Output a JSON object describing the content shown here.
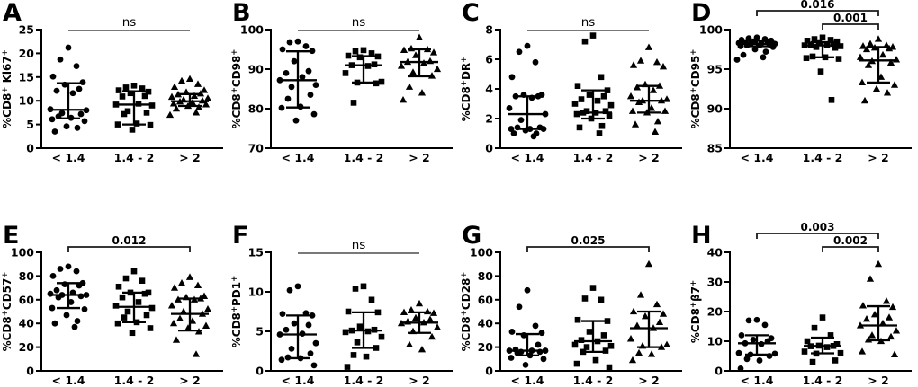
{
  "figure": {
    "background": "#ffffff",
    "x_categories": [
      "< 1.4",
      "1.4 - 2",
      "> 2"
    ],
    "marker_shapes": [
      "circle",
      "square",
      "triangle"
    ],
    "colors": {
      "points": "#000000",
      "axis": "#000000",
      "text": "#000000",
      "ns_line": "#666666",
      "bracket": "#1a1a1a"
    }
  },
  "chart_data": [
    {
      "type": "scatter",
      "letter": "A",
      "ylabel_plain": "%CD8+ Ki67+",
      "ylabel_rich": "%CD8^+ Ki67^+",
      "ylim": [
        0,
        25
      ],
      "yticks": [
        0,
        5,
        10,
        15,
        20,
        25
      ],
      "categories": [
        "< 1.4",
        "1.4 - 2",
        "> 2"
      ],
      "significance": [
        {
          "style": "line",
          "label": "ns",
          "from_group": 0,
          "to_group": 2
        }
      ],
      "series": [
        {
          "category": "< 1.4",
          "marker": "circle",
          "median": 8.1,
          "iqr_low": 6.3,
          "iqr_high": 13.7,
          "values": [
            21.2,
            18.7,
            17.3,
            15.1,
            13.9,
            13.4,
            12.5,
            12.1,
            11.6,
            8.2,
            8.0,
            7.4,
            7.2,
            6.7,
            6.4,
            6.1,
            5.7,
            4.6,
            4.3,
            3.5
          ]
        },
        {
          "category": "1.4 - 2",
          "marker": "square",
          "median": 9.2,
          "iqr_low": 5.0,
          "iqr_high": 12.0,
          "values": [
            13.2,
            12.8,
            12.6,
            12.2,
            11.9,
            11.6,
            11.0,
            10.9,
            9.4,
            9.2,
            9.0,
            7.8,
            7.5,
            7.2,
            5.2,
            5.0,
            4.9,
            3.9
          ]
        },
        {
          "category": "> 2",
          "marker": "triangle",
          "median": 9.9,
          "iqr_low": 8.9,
          "iqr_high": 11.4,
          "values": [
            14.6,
            14.2,
            13.5,
            12.9,
            12.2,
            11.8,
            11.5,
            11.3,
            11.0,
            10.8,
            10.5,
            10.2,
            10.0,
            9.8,
            9.6,
            9.4,
            9.2,
            8.9,
            8.6,
            8.3,
            7.5,
            7.0
          ]
        }
      ]
    },
    {
      "type": "scatter",
      "letter": "B",
      "ylabel_plain": "%CD8+CD98+",
      "ylabel_rich": "%CD8^+CD98^+",
      "ylim": [
        70,
        100
      ],
      "yticks": [
        70,
        80,
        90,
        100
      ],
      "categories": [
        "< 1.4",
        "1.4 - 2",
        "> 2"
      ],
      "significance": [
        {
          "style": "line",
          "label": "ns",
          "from_group": 0,
          "to_group": 2
        }
      ],
      "series": [
        {
          "category": "< 1.4",
          "marker": "circle",
          "median": 87.2,
          "iqr_low": 80.3,
          "iqr_high": 94.5,
          "values": [
            97.0,
            96.8,
            95.8,
            95.0,
            94.6,
            92.0,
            89.5,
            89.0,
            88.0,
            87.2,
            86.0,
            85.5,
            83.5,
            82.5,
            80.5,
            80.2,
            78.6,
            77.0
          ]
        },
        {
          "category": "1.4 - 2",
          "marker": "square",
          "median": 91.0,
          "iqr_low": 86.6,
          "iqr_high": 93.3,
          "values": [
            94.8,
            94.5,
            94.0,
            93.4,
            93.2,
            93.0,
            91.2,
            91.0,
            90.8,
            89.0,
            86.8,
            86.6,
            86.4,
            81.5
          ]
        },
        {
          "category": "> 2",
          "marker": "triangle",
          "median": 91.8,
          "iqr_low": 88.2,
          "iqr_high": 95.0,
          "values": [
            98.0,
            95.2,
            95.0,
            94.8,
            94.2,
            93.5,
            92.0,
            91.8,
            91.5,
            90.8,
            90.0,
            89.2,
            88.3,
            85.5,
            84.0,
            82.2
          ]
        }
      ]
    },
    {
      "type": "scatter",
      "letter": "C",
      "ylabel_plain": "%CD8+DR+",
      "ylabel_rich": "%CD8^+DR^+",
      "ylim": [
        0,
        8
      ],
      "yticks": [
        0,
        2,
        4,
        6,
        8
      ],
      "categories": [
        "< 1.4",
        "1.4 - 2",
        "> 2"
      ],
      "significance": [
        {
          "style": "line",
          "label": "ns",
          "from_group": 0,
          "to_group": 2
        }
      ],
      "series": [
        {
          "category": "< 1.4",
          "marker": "circle",
          "median": 2.3,
          "iqr_low": 1.3,
          "iqr_high": 3.5,
          "values": [
            6.9,
            6.5,
            5.8,
            4.8,
            3.6,
            3.6,
            3.5,
            3.5,
            3.4,
            2.7,
            2.3,
            1.9,
            1.4,
            1.4,
            1.3,
            1.3,
            1.3,
            1.2,
            1.0,
            1.0,
            0.8
          ]
        },
        {
          "category": "1.4 - 2",
          "marker": "square",
          "median": 2.4,
          "iqr_low": 2.0,
          "iqr_high": 3.9,
          "values": [
            7.6,
            7.2,
            4.8,
            4.2,
            3.9,
            3.6,
            3.5,
            3.3,
            3.2,
            3.0,
            2.9,
            2.5,
            2.5,
            2.4,
            2.4,
            2.3,
            2.2,
            2.0,
            1.5,
            1.4,
            1.0
          ]
        },
        {
          "category": "> 2",
          "marker": "triangle",
          "median": 3.2,
          "iqr_low": 2.4,
          "iqr_high": 4.2,
          "values": [
            6.8,
            5.9,
            5.8,
            5.6,
            5.5,
            4.3,
            4.2,
            4.1,
            3.9,
            3.5,
            3.3,
            3.2,
            3.2,
            3.1,
            2.7,
            2.5,
            2.5,
            2.4,
            1.8,
            1.6,
            1.1
          ]
        }
      ]
    },
    {
      "type": "scatter",
      "letter": "D",
      "ylabel_plain": "%CD8+CD95+",
      "ylabel_rich": "%CD8^+CD95^+",
      "ylim": [
        85,
        100
      ],
      "yticks": [
        85,
        90,
        95,
        100
      ],
      "categories": [
        "< 1.4",
        "1.4 - 2",
        "> 2"
      ],
      "significance": [
        {
          "style": "bracket",
          "label": "0.016",
          "from_group": 0,
          "to_group": 2,
          "level": 0
        },
        {
          "style": "bracket",
          "label": "0.001",
          "from_group": 1,
          "to_group": 2,
          "level": 1
        }
      ],
      "series": [
        {
          "category": "< 1.4",
          "marker": "circle",
          "median": 98.2,
          "iqr_low": 97.9,
          "iqr_high": 98.6,
          "values": [
            99.0,
            98.9,
            98.8,
            98.7,
            98.6,
            98.5,
            98.5,
            98.4,
            98.3,
            98.3,
            98.2,
            98.2,
            98.1,
            98.0,
            98.0,
            97.9,
            97.8,
            97.5,
            97.2,
            96.8,
            96.5,
            96.2
          ]
        },
        {
          "category": "1.4 - 2",
          "marker": "square",
          "median": 98.0,
          "iqr_low": 96.5,
          "iqr_high": 98.4,
          "values": [
            99.0,
            98.8,
            98.7,
            98.6,
            98.5,
            98.4,
            98.2,
            98.1,
            98.0,
            98.0,
            97.9,
            97.8,
            97.7,
            96.6,
            96.5,
            96.4,
            96.3,
            94.7,
            91.1
          ]
        },
        {
          "category": "> 2",
          "marker": "triangle",
          "median": 96.1,
          "iqr_low": 93.3,
          "iqr_high": 97.8,
          "values": [
            98.8,
            98.2,
            98.0,
            97.9,
            97.8,
            97.7,
            97.6,
            97.5,
            96.8,
            96.5,
            96.2,
            96.0,
            95.8,
            95.5,
            94.0,
            93.3,
            93.0,
            92.5,
            92.0,
            91.0
          ]
        }
      ]
    },
    {
      "type": "scatter",
      "letter": "E",
      "ylabel_plain": "%CD8+CD57+",
      "ylabel_rich": "%CD8^+CD57^+",
      "ylim": [
        0,
        100
      ],
      "yticks": [
        0,
        20,
        40,
        60,
        80,
        100
      ],
      "categories": [
        "< 1.4",
        "1.4 - 2",
        "> 2"
      ],
      "significance": [
        {
          "style": "bracket",
          "label": "0.012",
          "from_group": 0,
          "to_group": 2,
          "level": 1
        }
      ],
      "series": [
        {
          "category": "< 1.4",
          "marker": "circle",
          "median": 64,
          "iqr_low": 53,
          "iqr_high": 74,
          "values": [
            88,
            86,
            84,
            80,
            74,
            73,
            72,
            68,
            66,
            65,
            64,
            64,
            63,
            62,
            58,
            53,
            52,
            47,
            42,
            40,
            37
          ]
        },
        {
          "category": "1.4 - 2",
          "marker": "square",
          "median": 54,
          "iqr_low": 41,
          "iqr_high": 66,
          "values": [
            84,
            78,
            76,
            71,
            66,
            66,
            65,
            62,
            58,
            55,
            53,
            50,
            47,
            45,
            41,
            40,
            36,
            32
          ]
        },
        {
          "category": "> 2",
          "marker": "triangle",
          "median": 48,
          "iqr_low": 34,
          "iqr_high": 61,
          "values": [
            79,
            74,
            72,
            70,
            63,
            62,
            61,
            60,
            60,
            55,
            52,
            50,
            48,
            44,
            42,
            40,
            38,
            36,
            33,
            26,
            14
          ]
        }
      ]
    },
    {
      "type": "scatter",
      "letter": "F",
      "ylabel_plain": "%CD8+PD1+",
      "ylabel_rich": "%CD8^+PD1^+",
      "ylim": [
        0,
        15
      ],
      "yticks": [
        0,
        5,
        10,
        15
      ],
      "categories": [
        "< 1.4",
        "1.4 - 2",
        "> 2"
      ],
      "significance": [
        {
          "style": "line",
          "label": "ns",
          "from_group": 0,
          "to_group": 2
        }
      ],
      "series": [
        {
          "category": "< 1.4",
          "marker": "circle",
          "median": 4.6,
          "iqr_low": 1.6,
          "iqr_high": 7.0,
          "values": [
            10.7,
            10.2,
            7.3,
            7.2,
            7.0,
            6.0,
            5.8,
            5.2,
            4.7,
            4.6,
            3.5,
            2.8,
            2.2,
            1.7,
            1.6,
            1.4,
            0.7
          ]
        },
        {
          "category": "1.4 - 2",
          "marker": "square",
          "median": 5.1,
          "iqr_low": 2.9,
          "iqr_high": 7.4,
          "values": [
            10.7,
            10.4,
            9.0,
            7.5,
            7.4,
            5.6,
            5.2,
            5.1,
            5.0,
            4.9,
            4.3,
            3.6,
            2.9,
            2.0,
            1.8,
            0.5
          ]
        },
        {
          "category": "> 2",
          "marker": "triangle",
          "median": 6.1,
          "iqr_low": 4.8,
          "iqr_high": 7.4,
          "values": [
            8.5,
            7.7,
            7.5,
            7.4,
            7.3,
            6.7,
            6.5,
            6.2,
            6.1,
            6.0,
            5.5,
            5.0,
            4.3,
            3.3,
            2.7
          ]
        }
      ]
    },
    {
      "type": "scatter",
      "letter": "G",
      "ylabel_plain": "%CD8+CD28+",
      "ylabel_rich": "%CD8^+CD28^+",
      "ylim": [
        0,
        100
      ],
      "yticks": [
        0,
        20,
        40,
        60,
        80,
        100
      ],
      "categories": [
        "< 1.4",
        "1.4 - 2",
        "> 2"
      ],
      "significance": [
        {
          "style": "bracket",
          "label": "0.025",
          "from_group": 0,
          "to_group": 2,
          "level": 1
        }
      ],
      "series": [
        {
          "category": "< 1.4",
          "marker": "circle",
          "median": 17,
          "iqr_low": 13,
          "iqr_high": 31,
          "values": [
            68,
            54,
            38,
            33,
            32,
            30,
            22,
            18,
            17,
            17,
            17,
            16,
            16,
            15,
            13,
            11,
            10,
            5
          ]
        },
        {
          "category": "1.4 - 2",
          "marker": "square",
          "median": 25,
          "iqr_low": 16,
          "iqr_high": 42,
          "values": [
            70,
            61,
            60,
            43,
            42,
            33,
            30,
            26,
            25,
            22,
            21,
            20,
            17,
            16,
            9,
            6,
            3
          ]
        },
        {
          "category": "> 2",
          "marker": "triangle",
          "median": 36,
          "iqr_low": 20,
          "iqr_high": 50,
          "values": [
            90,
            64,
            56,
            50,
            48,
            46,
            41,
            38,
            36,
            27,
            22,
            21,
            20,
            15,
            14,
            9
          ]
        }
      ]
    },
    {
      "type": "scatter",
      "letter": "H",
      "ylabel_plain": "%CD8+β7+",
      "ylabel_rich": "%CD8^+β7^+",
      "ylim": [
        0,
        40
      ],
      "yticks": [
        0,
        10,
        20,
        30,
        40
      ],
      "categories": [
        "< 1.4",
        "1.4 - 2",
        "> 2"
      ],
      "significance": [
        {
          "style": "bracket",
          "label": "0.003",
          "from_group": 0,
          "to_group": 2,
          "level": 0
        },
        {
          "style": "bracket",
          "label": "0.002",
          "from_group": 1,
          "to_group": 2,
          "level": 1
        }
      ],
      "series": [
        {
          "category": "< 1.4",
          "marker": "circle",
          "median": 9.3,
          "iqr_low": 5.5,
          "iqr_high": 12.0,
          "values": [
            17.2,
            17.0,
            15.5,
            12.0,
            11.0,
            10.5,
            10.0,
            9.3,
            9.0,
            6.0,
            5.8,
            5.5,
            5.0,
            4.0,
            3.5,
            0.8
          ]
        },
        {
          "category": "1.4 - 2",
          "marker": "square",
          "median": 8.4,
          "iqr_low": 5.9,
          "iqr_high": 11.2,
          "values": [
            18.0,
            14.5,
            12.0,
            10.0,
            9.0,
            8.5,
            8.4,
            8.3,
            8.0,
            6.5,
            6.0,
            5.8,
            3.5,
            3.0
          ]
        },
        {
          "category": "> 2",
          "marker": "triangle",
          "median": 15.3,
          "iqr_low": 10.3,
          "iqr_high": 21.8,
          "values": [
            36.0,
            31.0,
            23.5,
            22.0,
            21.5,
            19.0,
            18.0,
            17.5,
            16.0,
            15.3,
            13.5,
            12.0,
            11.5,
            10.5,
            10.0,
            6.5,
            5.5
          ]
        }
      ]
    }
  ]
}
